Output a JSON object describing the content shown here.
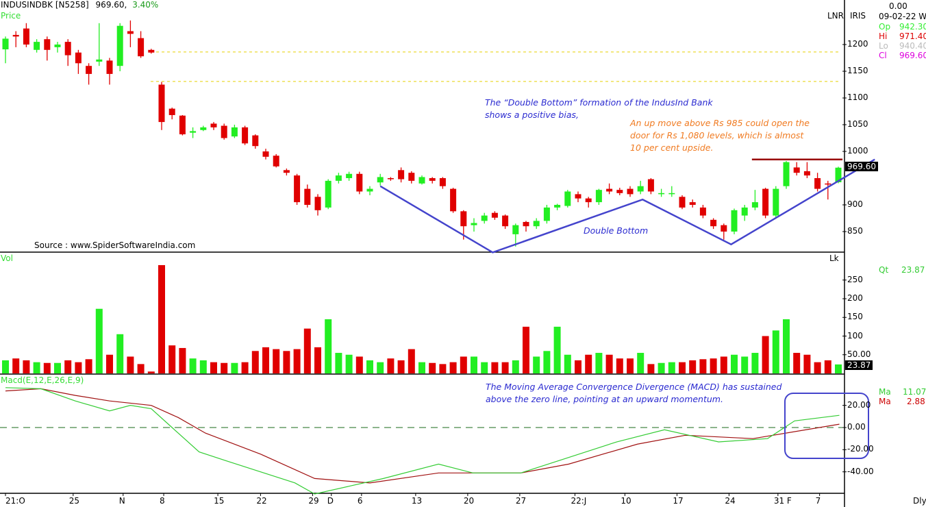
{
  "header": {
    "symbol": "INDUSINDBK [N5258]",
    "last": "969.60,",
    "change": "3.40%"
  },
  "panels": {
    "price_label": "Price",
    "vol_label": "Vol",
    "macd_label": "Macd(E,12,E,26,E,9)",
    "lnr": "LNR",
    "iris": "IRIS",
    "lk": "Lk"
  },
  "right_panel": {
    "value_top": "0.00",
    "date": "09-02-22 We",
    "op_label": "Op",
    "op": "942.30",
    "hi_label": "Hi",
    "hi": "971.40",
    "lo_label": "Lo",
    "lo": "940.40",
    "cl_label": "Cl",
    "cl": "969.60",
    "qt_label": "Qt",
    "qt": "23.87",
    "ma1_label": "Ma",
    "ma1": "11.07",
    "ma2_label": "Ma",
    "ma2": "2.88"
  },
  "footer": {
    "period": "Dly"
  },
  "source": "Source : www.SpiderSoftwareIndia.com",
  "annotations": {
    "double_bottom_note": "The “Double Bottom” formation of the IndusInd Bank shows a positive bias,",
    "upmove_note": "An up move above Rs 985 could open the door for Rs 1,080 levels, which is almost 10 per cent upside.",
    "double_bottom_label": "Double Bottom",
    "macd_note": "The Moving Average Convergence Divergence (MACD) has sustained above the zero line, pointing at an upward momentum."
  },
  "colors": {
    "up": "#22ee22",
    "down": "#e00000",
    "trend": "#4444cc",
    "signal": "#a01010",
    "macd": "#33cc33",
    "resistance": "#990000",
    "guide": "#e8d000"
  },
  "chart_data": {
    "type": "candlestick",
    "title": "INDUSINDBK daily",
    "price_ticks": [
      "1200",
      "1150",
      "1100",
      "1050",
      "1000",
      "900",
      "850"
    ],
    "price_tick_values": [
      1200,
      1150,
      1100,
      1050,
      1000,
      900,
      850
    ],
    "price_label_current": "969.60",
    "volume_ticks": [
      "250",
      "200",
      "150",
      "100",
      "50.00"
    ],
    "volume_tick_values": [
      250,
      200,
      150,
      100,
      50
    ],
    "volume_label_current": "23.87",
    "macd_ticks": [
      "20.00",
      "0.00",
      "-20.00",
      "-40.00"
    ],
    "macd_tick_values": [
      20,
      0,
      -20,
      -40
    ],
    "x_ticks": [
      {
        "label": "21:O",
        "i": 0
      },
      {
        "label": "25",
        "i": 6.5
      },
      {
        "label": "N",
        "i": 11.3
      },
      {
        "label": "8",
        "i": 15.2
      },
      {
        "label": "15",
        "i": 20.4
      },
      {
        "label": "22",
        "i": 24.5
      },
      {
        "label": "29",
        "i": 29.5
      },
      {
        "label": "D",
        "i": 31.3
      },
      {
        "label": "6",
        "i": 34.2
      },
      {
        "label": "13",
        "i": 39.4
      },
      {
        "label": "20",
        "i": 44.4
      },
      {
        "label": "27",
        "i": 49.4
      },
      {
        "label": "22:J",
        "i": 54.7
      },
      {
        "label": "10",
        "i": 59.5
      },
      {
        "label": "17",
        "i": 64.5
      },
      {
        "label": "24",
        "i": 69.5
      },
      {
        "label": "31 F",
        "i": 74.2
      },
      {
        "label": "7",
        "i": 78.2
      }
    ],
    "ohlc": [
      [
        1191,
        1211,
        1215,
        1165
      ],
      [
        1218,
        1215,
        1225,
        1195
      ],
      [
        1230,
        1200,
        1240,
        1195
      ],
      [
        1190,
        1205,
        1210,
        1185
      ],
      [
        1210,
        1190,
        1215,
        1170
      ],
      [
        1195,
        1200,
        1205,
        1185
      ],
      [
        1205,
        1180,
        1210,
        1160
      ],
      [
        1185,
        1165,
        1190,
        1145
      ],
      [
        1160,
        1145,
        1165,
        1125
      ],
      [
        1168,
        1172,
        1240,
        1160
      ],
      [
        1170,
        1145,
        1175,
        1125
      ],
      [
        1160,
        1235,
        1240,
        1150
      ],
      [
        1225,
        1220,
        1245,
        1195
      ],
      [
        1212,
        1178,
        1225,
        1175
      ],
      [
        1190,
        1185,
        1192,
        1183
      ],
      [
        1125,
        1055,
        1130,
        1040
      ],
      [
        1080,
        1068,
        1082,
        1060
      ],
      [
        1067,
        1032,
        1068,
        1030
      ],
      [
        1035,
        1038,
        1045,
        1025
      ],
      [
        1040,
        1045,
        1048,
        1038
      ],
      [
        1052,
        1045,
        1055,
        1040
      ],
      [
        1048,
        1025,
        1052,
        1022
      ],
      [
        1028,
        1045,
        1050,
        1025
      ],
      [
        1045,
        1015,
        1048,
        1012
      ],
      [
        1030,
        1010,
        1032,
        1005
      ],
      [
        1000,
        990,
        1005,
        985
      ],
      [
        992,
        972,
        995,
        970
      ],
      [
        965,
        960,
        968,
        955
      ],
      [
        955,
        905,
        958,
        900
      ],
      [
        930,
        900,
        938,
        895
      ],
      [
        915,
        890,
        920,
        880
      ],
      [
        895,
        945,
        948,
        892
      ],
      [
        945,
        955,
        960,
        940
      ],
      [
        950,
        958,
        962,
        945
      ],
      [
        958,
        925,
        962,
        920
      ],
      [
        925,
        930,
        935,
        918
      ],
      [
        942,
        952,
        958,
        936
      ],
      [
        950,
        948,
        952,
        945
      ],
      [
        965,
        948,
        970,
        942
      ],
      [
        960,
        945,
        963,
        940
      ],
      [
        940,
        952,
        955,
        938
      ],
      [
        950,
        945,
        952,
        940
      ],
      [
        950,
        935,
        952,
        930
      ],
      [
        930,
        888,
        932,
        885
      ],
      [
        888,
        860,
        890,
        835
      ],
      [
        862,
        866,
        875,
        850
      ],
      [
        870,
        880,
        885,
        865
      ],
      [
        885,
        876,
        888,
        872
      ],
      [
        880,
        860,
        882,
        855
      ],
      [
        845,
        862,
        865,
        822
      ],
      [
        868,
        860,
        870,
        850
      ],
      [
        860,
        870,
        875,
        855
      ],
      [
        870,
        895,
        900,
        865
      ],
      [
        895,
        900,
        902,
        890
      ],
      [
        898,
        925,
        928,
        895
      ],
      [
        920,
        912,
        925,
        905
      ],
      [
        912,
        905,
        915,
        895
      ],
      [
        905,
        928,
        930,
        900
      ],
      [
        930,
        925,
        940,
        920
      ],
      [
        928,
        922,
        932,
        918
      ],
      [
        930,
        920,
        935,
        915
      ],
      [
        925,
        935,
        945,
        920
      ],
      [
        948,
        925,
        950,
        920
      ],
      [
        920,
        922,
        930,
        915
      ],
      [
        920,
        922,
        935,
        915
      ],
      [
        915,
        895,
        918,
        892
      ],
      [
        905,
        900,
        910,
        895
      ],
      [
        895,
        880,
        900,
        875
      ],
      [
        872,
        860,
        875,
        855
      ],
      [
        862,
        850,
        865,
        835
      ],
      [
        850,
        890,
        893,
        845
      ],
      [
        880,
        895,
        900,
        870
      ],
      [
        895,
        905,
        928,
        890
      ],
      [
        930,
        880,
        932,
        875
      ],
      [
        880,
        930,
        935,
        875
      ],
      [
        935,
        980,
        982,
        930
      ],
      [
        970,
        960,
        980,
        955
      ],
      [
        963,
        955,
        980,
        950
      ],
      [
        950,
        930,
        960,
        925
      ],
      [
        940,
        938,
        945,
        910
      ],
      [
        942.3,
        969.6,
        971.4,
        940.4
      ]
    ],
    "volume": [
      35,
      40,
      35,
      30,
      28,
      28,
      35,
      30,
      38,
      173,
      50,
      105,
      45,
      25,
      5,
      290,
      75,
      68,
      40,
      35,
      30,
      28,
      28,
      30,
      60,
      70,
      65,
      60,
      65,
      120,
      70,
      145,
      55,
      50,
      45,
      35,
      30,
      40,
      35,
      65,
      30,
      28,
      25,
      30,
      45,
      45,
      30,
      30,
      30,
      35,
      125,
      45,
      60,
      125,
      50,
      35,
      50,
      55,
      50,
      40,
      40,
      55,
      25,
      28,
      30,
      30,
      35,
      38,
      40,
      45,
      50,
      45,
      55,
      100,
      115,
      145,
      55,
      50,
      30,
      35,
      24
    ],
    "macd": [
      [
        0,
        36
      ],
      [
        3.4,
        35
      ],
      [
        6.7,
        24
      ],
      [
        10,
        15
      ],
      [
        12,
        20
      ],
      [
        14,
        17
      ],
      [
        16,
        0
      ],
      [
        18.6,
        -22
      ],
      [
        21.2,
        -30
      ],
      [
        24.5,
        -40
      ],
      [
        27.8,
        -50
      ],
      [
        29.7,
        -60
      ],
      [
        33,
        -53
      ],
      [
        36.3,
        -46
      ],
      [
        41.6,
        -33
      ],
      [
        44.9,
        -41
      ],
      [
        49.5,
        -41
      ],
      [
        54.1,
        -27
      ],
      [
        58.7,
        -13
      ],
      [
        63.3,
        -2
      ],
      [
        68.5,
        -13
      ],
      [
        73.2,
        -10
      ],
      [
        75.8,
        6
      ],
      [
        80.1,
        11
      ]
    ],
    "signal": [
      [
        0,
        33
      ],
      [
        3.4,
        35
      ],
      [
        6.7,
        29
      ],
      [
        10,
        24
      ],
      [
        14,
        20
      ],
      [
        16.6,
        9
      ],
      [
        19.2,
        -5
      ],
      [
        24.5,
        -24
      ],
      [
        29.7,
        -46
      ],
      [
        35,
        -50
      ],
      [
        41.6,
        -41
      ],
      [
        49.5,
        -41
      ],
      [
        54.1,
        -33
      ],
      [
        60.7,
        -15
      ],
      [
        65.3,
        -7
      ],
      [
        71.8,
        -10
      ],
      [
        80.1,
        3
      ]
    ],
    "trendline_double_bottom": [
      [
        36,
        935
      ],
      [
        46.8,
        811
      ],
      [
        61.2,
        910
      ],
      [
        69.7,
        826
      ],
      [
        83.5,
        985
      ]
    ],
    "resistance": {
      "price": 985,
      "from_i": 71.7,
      "to_i": 80.4
    },
    "guide_levels": [
      1186,
      1131
    ],
    "series": [
      {
        "name": "MACD",
        "color": "green"
      },
      {
        "name": "Signal",
        "color": "red"
      }
    ]
  }
}
